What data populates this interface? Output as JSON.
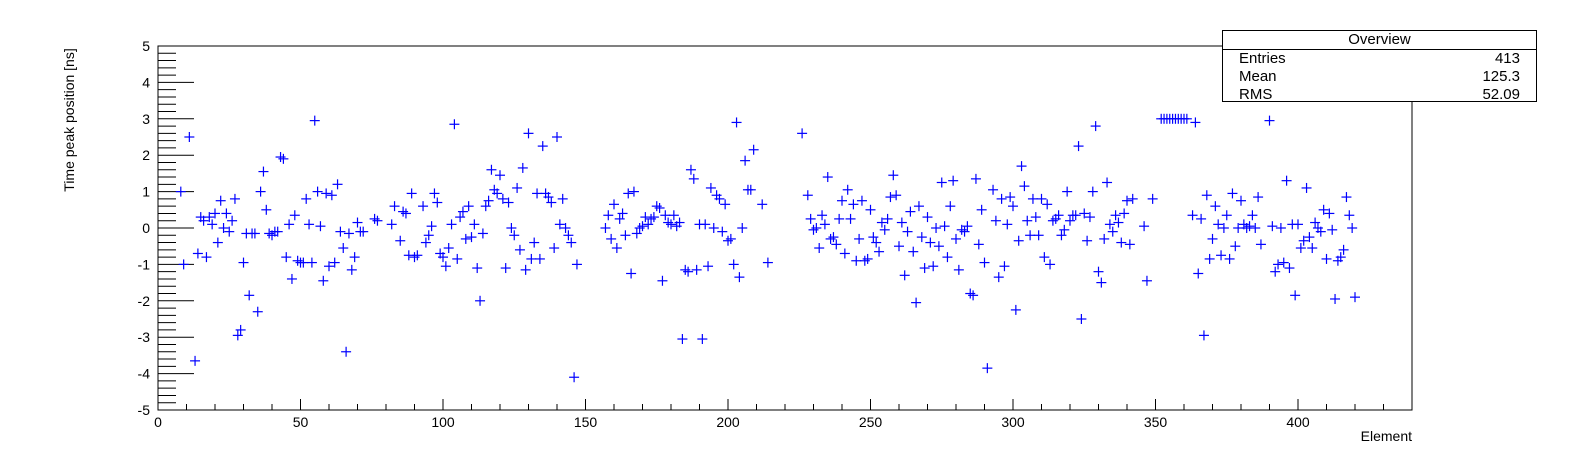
{
  "chart_data": {
    "type": "scatter",
    "xlabel": "Element",
    "ylabel": "Time peak position [ns]",
    "xlim": [
      0,
      440
    ],
    "ylim": [
      -5,
      5
    ],
    "x_ticks": [
      0,
      50,
      100,
      150,
      200,
      250,
      300,
      350,
      400
    ],
    "y_ticks": [
      -5,
      -4,
      -3,
      -2,
      -1,
      0,
      1,
      2,
      3,
      4,
      5
    ],
    "marker_color": "#0000ff",
    "grid": false,
    "stats_box": {
      "title": "Overview",
      "rows": [
        {
          "label": "Entries",
          "value": "413"
        },
        {
          "label": "Mean",
          "value": "125.3"
        },
        {
          "label": "RMS",
          "value": "52.09"
        }
      ]
    },
    "points": [
      [
        8,
        1.0
      ],
      [
        9,
        -1.0
      ],
      [
        11,
        2.5
      ],
      [
        13,
        -3.65
      ],
      [
        14,
        -0.7
      ],
      [
        15,
        0.3
      ],
      [
        16,
        0.2
      ],
      [
        17,
        -0.8
      ],
      [
        18,
        0.3
      ],
      [
        19,
        0.1
      ],
      [
        20,
        0.4
      ],
      [
        21,
        -0.4
      ],
      [
        22,
        0.75
      ],
      [
        23,
        0.0
      ],
      [
        24,
        0.4
      ],
      [
        25,
        -0.1
      ],
      [
        26,
        0.2
      ],
      [
        27,
        0.8
      ],
      [
        28,
        -2.95
      ],
      [
        29,
        -2.8
      ],
      [
        30,
        -0.95
      ],
      [
        31,
        -0.15
      ],
      [
        32,
        -1.85
      ],
      [
        33,
        -0.15
      ],
      [
        34,
        -0.15
      ],
      [
        35,
        -2.3
      ],
      [
        36,
        1.0
      ],
      [
        37,
        1.55
      ],
      [
        38,
        0.5
      ],
      [
        39,
        -0.15
      ],
      [
        40,
        -0.2
      ],
      [
        41,
        -0.1
      ],
      [
        42,
        -0.1
      ],
      [
        43,
        1.95
      ],
      [
        44,
        1.9
      ],
      [
        45,
        -0.8
      ],
      [
        46,
        0.1
      ],
      [
        47,
        -1.4
      ],
      [
        48,
        0.35
      ],
      [
        49,
        -0.9
      ],
      [
        50,
        -0.95
      ],
      [
        51,
        -0.95
      ],
      [
        52,
        0.8
      ],
      [
        53,
        0.1
      ],
      [
        54,
        -0.95
      ],
      [
        55,
        2.95
      ],
      [
        56,
        1.0
      ],
      [
        57,
        0.05
      ],
      [
        58,
        -1.45
      ],
      [
        59,
        0.95
      ],
      [
        60,
        -1.05
      ],
      [
        61,
        0.9
      ],
      [
        62,
        -0.95
      ],
      [
        63,
        1.2
      ],
      [
        64,
        -0.1
      ],
      [
        65,
        -0.55
      ],
      [
        66,
        -3.4
      ],
      [
        67,
        -0.15
      ],
      [
        68,
        -1.15
      ],
      [
        69,
        -0.8
      ],
      [
        70,
        0.15
      ],
      [
        71,
        -0.1
      ],
      [
        72,
        -0.1
      ],
      [
        76,
        0.25
      ],
      [
        77,
        0.2
      ],
      [
        82,
        0.1
      ],
      [
        83,
        0.6
      ],
      [
        85,
        -0.35
      ],
      [
        86,
        0.45
      ],
      [
        87,
        0.4
      ],
      [
        88,
        -0.75
      ],
      [
        89,
        0.95
      ],
      [
        90,
        -0.8
      ],
      [
        91,
        -0.75
      ],
      [
        93,
        0.6
      ],
      [
        94,
        -0.4
      ],
      [
        95,
        -0.2
      ],
      [
        96,
        0.05
      ],
      [
        97,
        0.95
      ],
      [
        98,
        0.7
      ],
      [
        99,
        -0.7
      ],
      [
        100,
        -0.8
      ],
      [
        101,
        -1.05
      ],
      [
        102,
        -0.55
      ],
      [
        103,
        0.1
      ],
      [
        104,
        2.85
      ],
      [
        105,
        -0.85
      ],
      [
        106,
        0.3
      ],
      [
        107,
        0.45
      ],
      [
        108,
        -0.3
      ],
      [
        109,
        0.6
      ],
      [
        110,
        -0.25
      ],
      [
        111,
        0.1
      ],
      [
        112,
        -1.1
      ],
      [
        113,
        -2.0
      ],
      [
        114,
        -0.15
      ],
      [
        115,
        0.6
      ],
      [
        116,
        0.75
      ],
      [
        117,
        1.6
      ],
      [
        118,
        1.05
      ],
      [
        119,
        0.95
      ],
      [
        120,
        1.45
      ],
      [
        121,
        0.8
      ],
      [
        122,
        -1.1
      ],
      [
        123,
        0.7
      ],
      [
        124,
        0.0
      ],
      [
        125,
        -0.2
      ],
      [
        126,
        1.1
      ],
      [
        127,
        -0.6
      ],
      [
        128,
        1.65
      ],
      [
        129,
        -1.15
      ],
      [
        130,
        2.6
      ],
      [
        131,
        -0.85
      ],
      [
        132,
        -0.4
      ],
      [
        133,
        0.95
      ],
      [
        134,
        -0.85
      ],
      [
        135,
        2.25
      ],
      [
        136,
        0.95
      ],
      [
        137,
        0.85
      ],
      [
        138,
        0.7
      ],
      [
        139,
        -0.55
      ],
      [
        140,
        2.5
      ],
      [
        141,
        0.1
      ],
      [
        142,
        0.8
      ],
      [
        143,
        0.0
      ],
      [
        144,
        -0.2
      ],
      [
        145,
        -0.4
      ],
      [
        146,
        -4.1
      ],
      [
        147,
        -1.0
      ],
      [
        157,
        0.0
      ],
      [
        158,
        0.35
      ],
      [
        159,
        -0.3
      ],
      [
        160,
        0.65
      ],
      [
        161,
        -0.55
      ],
      [
        162,
        0.25
      ],
      [
        163,
        0.4
      ],
      [
        164,
        -0.2
      ],
      [
        165,
        0.95
      ],
      [
        166,
        -1.25
      ],
      [
        167,
        1.0
      ],
      [
        168,
        -0.15
      ],
      [
        169,
        0.0
      ],
      [
        170,
        0.05
      ],
      [
        171,
        0.3
      ],
      [
        172,
        0.1
      ],
      [
        173,
        0.25
      ],
      [
        174,
        0.3
      ],
      [
        175,
        0.6
      ],
      [
        176,
        0.55
      ],
      [
        177,
        -1.45
      ],
      [
        178,
        0.35
      ],
      [
        179,
        0.15
      ],
      [
        180,
        0.1
      ],
      [
        181,
        0.35
      ],
      [
        182,
        0.05
      ],
      [
        183,
        0.15
      ],
      [
        184,
        -3.05
      ],
      [
        185,
        -1.15
      ],
      [
        186,
        -1.2
      ],
      [
        187,
        1.6
      ],
      [
        188,
        1.35
      ],
      [
        189,
        -1.15
      ],
      [
        190,
        0.1
      ],
      [
        191,
        -3.05
      ],
      [
        192,
        0.1
      ],
      [
        193,
        -1.05
      ],
      [
        194,
        1.1
      ],
      [
        195,
        0.0
      ],
      [
        196,
        0.9
      ],
      [
        197,
        0.8
      ],
      [
        198,
        -0.1
      ],
      [
        199,
        0.65
      ],
      [
        200,
        -0.35
      ],
      [
        201,
        -0.3
      ],
      [
        202,
        -1.0
      ],
      [
        203,
        2.9
      ],
      [
        204,
        -1.35
      ],
      [
        205,
        0.0
      ],
      [
        206,
        1.85
      ],
      [
        207,
        1.05
      ],
      [
        208,
        1.05
      ],
      [
        209,
        2.15
      ],
      [
        212,
        0.65
      ],
      [
        214,
        -0.95
      ],
      [
        226,
        2.6
      ],
      [
        228,
        0.9
      ],
      [
        229,
        0.25
      ],
      [
        230,
        -0.05
      ],
      [
        231,
        0.0
      ],
      [
        232,
        -0.55
      ],
      [
        233,
        0.35
      ],
      [
        234,
        0.1
      ],
      [
        235,
        1.4
      ],
      [
        236,
        -0.3
      ],
      [
        237,
        -0.25
      ],
      [
        238,
        -0.45
      ],
      [
        239,
        0.25
      ],
      [
        240,
        0.75
      ],
      [
        241,
        -0.7
      ],
      [
        242,
        1.05
      ],
      [
        243,
        0.25
      ],
      [
        244,
        0.65
      ],
      [
        245,
        -0.9
      ],
      [
        246,
        -0.3
      ],
      [
        247,
        0.75
      ],
      [
        248,
        -0.9
      ],
      [
        249,
        -0.85
      ],
      [
        250,
        0.5
      ],
      [
        251,
        -0.25
      ],
      [
        252,
        -0.4
      ],
      [
        253,
        -0.65
      ],
      [
        254,
        0.15
      ],
      [
        255,
        -0.05
      ],
      [
        256,
        0.25
      ],
      [
        257,
        0.85
      ],
      [
        258,
        1.45
      ],
      [
        259,
        0.9
      ],
      [
        260,
        -0.5
      ],
      [
        261,
        0.15
      ],
      [
        262,
        -1.3
      ],
      [
        263,
        -0.1
      ],
      [
        264,
        0.45
      ],
      [
        265,
        -0.65
      ],
      [
        266,
        -2.05
      ],
      [
        267,
        0.6
      ],
      [
        268,
        -0.25
      ],
      [
        269,
        -1.1
      ],
      [
        270,
        0.3
      ],
      [
        271,
        -0.4
      ],
      [
        272,
        -1.05
      ],
      [
        273,
        0.0
      ],
      [
        274,
        -0.5
      ],
      [
        275,
        1.25
      ],
      [
        276,
        0.05
      ],
      [
        277,
        -0.8
      ],
      [
        278,
        0.6
      ],
      [
        279,
        1.3
      ],
      [
        280,
        -0.3
      ],
      [
        281,
        -1.15
      ],
      [
        282,
        -0.05
      ],
      [
        283,
        -0.1
      ],
      [
        284,
        0.05
      ],
      [
        285,
        -1.8
      ],
      [
        286,
        -1.85
      ],
      [
        287,
        1.35
      ],
      [
        288,
        -0.45
      ],
      [
        289,
        0.5
      ],
      [
        290,
        -0.95
      ],
      [
        291,
        -3.85
      ],
      [
        293,
        1.05
      ],
      [
        294,
        0.2
      ],
      [
        295,
        -1.35
      ],
      [
        296,
        0.8
      ],
      [
        297,
        -1.05
      ],
      [
        298,
        0.1
      ],
      [
        299,
        0.85
      ],
      [
        300,
        0.6
      ],
      [
        301,
        -2.25
      ],
      [
        302,
        -0.35
      ],
      [
        303,
        1.7
      ],
      [
        304,
        1.15
      ],
      [
        305,
        0.2
      ],
      [
        306,
        -0.2
      ],
      [
        307,
        0.8
      ],
      [
        308,
        0.3
      ],
      [
        309,
        -0.2
      ],
      [
        310,
        0.8
      ],
      [
        311,
        -0.8
      ],
      [
        312,
        0.65
      ],
      [
        313,
        -1.0
      ],
      [
        314,
        0.2
      ],
      [
        315,
        0.25
      ],
      [
        316,
        0.35
      ],
      [
        317,
        -0.2
      ],
      [
        318,
        -0.05
      ],
      [
        319,
        1.0
      ],
      [
        320,
        0.2
      ],
      [
        321,
        0.35
      ],
      [
        322,
        0.35
      ],
      [
        323,
        2.25
      ],
      [
        324,
        -2.5
      ],
      [
        325,
        0.4
      ],
      [
        326,
        -0.35
      ],
      [
        327,
        0.3
      ],
      [
        328,
        1.0
      ],
      [
        329,
        2.8
      ],
      [
        330,
        -1.2
      ],
      [
        331,
        -1.5
      ],
      [
        332,
        -0.3
      ],
      [
        333,
        1.25
      ],
      [
        334,
        0.1
      ],
      [
        335,
        -0.1
      ],
      [
        336,
        0.35
      ],
      [
        337,
        0.15
      ],
      [
        338,
        -0.4
      ],
      [
        339,
        0.4
      ],
      [
        340,
        0.75
      ],
      [
        341,
        -0.45
      ],
      [
        342,
        0.8
      ],
      [
        346,
        0.05
      ],
      [
        347,
        -1.45
      ],
      [
        349,
        0.8
      ],
      [
        352,
        3.0
      ],
      [
        353,
        3.0
      ],
      [
        354,
        3.0
      ],
      [
        355,
        3.0
      ],
      [
        356,
        3.0
      ],
      [
        357,
        3.0
      ],
      [
        358,
        3.0
      ],
      [
        359,
        3.0
      ],
      [
        360,
        3.0
      ],
      [
        361,
        3.0
      ],
      [
        363,
        0.35
      ],
      [
        364,
        2.9
      ],
      [
        365,
        -1.25
      ],
      [
        366,
        0.25
      ],
      [
        367,
        -2.95
      ],
      [
        368,
        0.9
      ],
      [
        369,
        -0.85
      ],
      [
        370,
        -0.3
      ],
      [
        371,
        0.6
      ],
      [
        372,
        0.1
      ],
      [
        373,
        -0.75
      ],
      [
        374,
        0.0
      ],
      [
        375,
        0.35
      ],
      [
        376,
        -0.85
      ],
      [
        377,
        0.95
      ],
      [
        378,
        -0.5
      ],
      [
        379,
        0.0
      ],
      [
        380,
        0.75
      ],
      [
        381,
        0.1
      ],
      [
        382,
        0.0
      ],
      [
        383,
        0.05
      ],
      [
        384,
        0.35
      ],
      [
        385,
        0.0
      ],
      [
        386,
        0.85
      ],
      [
        387,
        -0.45
      ],
      [
        390,
        2.95
      ],
      [
        391,
        0.05
      ],
      [
        392,
        -1.2
      ],
      [
        393,
        -1.0
      ],
      [
        394,
        0.0
      ],
      [
        395,
        -0.95
      ],
      [
        396,
        1.3
      ],
      [
        397,
        -1.1
      ],
      [
        398,
        0.1
      ],
      [
        399,
        -1.85
      ],
      [
        400,
        0.1
      ],
      [
        401,
        -0.55
      ],
      [
        402,
        -0.35
      ],
      [
        403,
        1.1
      ],
      [
        404,
        -0.25
      ],
      [
        405,
        -0.55
      ],
      [
        406,
        0.15
      ],
      [
        407,
        0.0
      ],
      [
        408,
        -0.1
      ],
      [
        409,
        0.5
      ],
      [
        410,
        -0.85
      ],
      [
        411,
        0.4
      ],
      [
        412,
        -0.05
      ],
      [
        413,
        -1.95
      ],
      [
        414,
        -0.9
      ],
      [
        415,
        -0.8
      ],
      [
        416,
        -0.6
      ],
      [
        417,
        0.85
      ],
      [
        418,
        0.35
      ],
      [
        419,
        0.0
      ],
      [
        420,
        -1.9
      ]
    ]
  }
}
